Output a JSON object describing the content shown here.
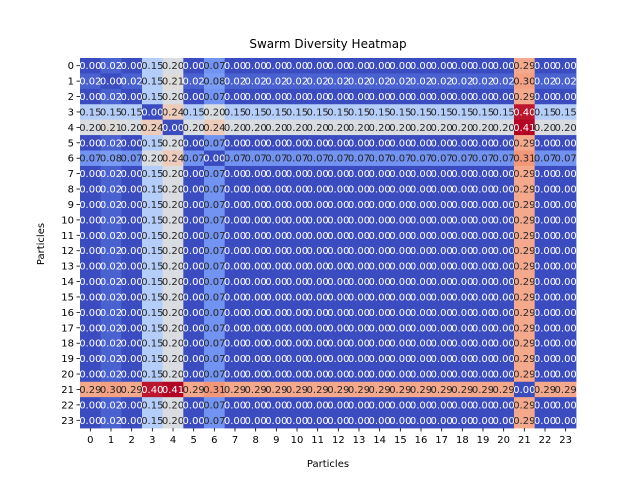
{
  "chart_data": {
    "type": "heatmap",
    "title": "Swarm Diversity Heatmap",
    "xlabel": "Particles",
    "ylabel": "Particles",
    "colormap": "coolwarm",
    "vmin": 0.0,
    "vmax": 0.41,
    "annotation_format": "0.00",
    "row_labels": [
      "0",
      "1",
      "2",
      "3",
      "4",
      "5",
      "6",
      "7",
      "8",
      "9",
      "10",
      "11",
      "12",
      "13",
      "14",
      "15",
      "16",
      "17",
      "18",
      "19",
      "20",
      "21",
      "22",
      "23"
    ],
    "col_labels": [
      "0",
      "1",
      "2",
      "3",
      "4",
      "5",
      "6",
      "7",
      "8",
      "9",
      "10",
      "11",
      "12",
      "13",
      "14",
      "15",
      "16",
      "17",
      "18",
      "19",
      "20",
      "21",
      "22",
      "23"
    ],
    "values": [
      [
        0.0,
        0.02,
        0.0,
        0.15,
        0.2,
        0.0,
        0.07,
        0.0,
        0.0,
        0.0,
        0.0,
        0.0,
        0.0,
        0.0,
        0.0,
        0.0,
        0.0,
        0.0,
        0.0,
        0.0,
        0.0,
        0.29,
        0.0,
        0.0
      ],
      [
        0.02,
        0.0,
        0.02,
        0.15,
        0.21,
        0.02,
        0.08,
        0.02,
        0.02,
        0.02,
        0.02,
        0.02,
        0.02,
        0.02,
        0.02,
        0.02,
        0.02,
        0.02,
        0.02,
        0.02,
        0.02,
        0.3,
        0.02,
        0.02
      ],
      [
        0.0,
        0.02,
        0.0,
        0.15,
        0.2,
        0.0,
        0.07,
        0.0,
        0.0,
        0.0,
        0.0,
        0.0,
        0.0,
        0.0,
        0.0,
        0.0,
        0.0,
        0.0,
        0.0,
        0.0,
        0.0,
        0.29,
        0.0,
        0.0
      ],
      [
        0.15,
        0.15,
        0.15,
        0.0,
        0.24,
        0.15,
        0.2,
        0.15,
        0.15,
        0.15,
        0.15,
        0.15,
        0.15,
        0.15,
        0.15,
        0.15,
        0.15,
        0.15,
        0.15,
        0.15,
        0.15,
        0.4,
        0.15,
        0.15
      ],
      [
        0.2,
        0.21,
        0.2,
        0.24,
        0.0,
        0.2,
        0.24,
        0.2,
        0.2,
        0.2,
        0.2,
        0.2,
        0.2,
        0.2,
        0.2,
        0.2,
        0.2,
        0.2,
        0.2,
        0.2,
        0.2,
        0.41,
        0.2,
        0.2
      ],
      [
        0.0,
        0.02,
        0.0,
        0.15,
        0.2,
        0.0,
        0.07,
        0.0,
        0.0,
        0.0,
        0.0,
        0.0,
        0.0,
        0.0,
        0.0,
        0.0,
        0.0,
        0.0,
        0.0,
        0.0,
        0.0,
        0.29,
        0.0,
        0.0
      ],
      [
        0.07,
        0.08,
        0.07,
        0.2,
        0.24,
        0.07,
        0.0,
        0.07,
        0.07,
        0.07,
        0.07,
        0.07,
        0.07,
        0.07,
        0.07,
        0.07,
        0.07,
        0.07,
        0.07,
        0.07,
        0.07,
        0.31,
        0.07,
        0.07
      ],
      [
        0.0,
        0.02,
        0.0,
        0.15,
        0.2,
        0.0,
        0.07,
        0.0,
        0.0,
        0.0,
        0.0,
        0.0,
        0.0,
        0.0,
        0.0,
        0.0,
        0.0,
        0.0,
        0.0,
        0.0,
        0.0,
        0.29,
        0.0,
        0.0
      ],
      [
        0.0,
        0.02,
        0.0,
        0.15,
        0.2,
        0.0,
        0.07,
        0.0,
        0.0,
        0.0,
        0.0,
        0.0,
        0.0,
        0.0,
        0.0,
        0.0,
        0.0,
        0.0,
        0.0,
        0.0,
        0.0,
        0.29,
        0.0,
        0.0
      ],
      [
        0.0,
        0.02,
        0.0,
        0.15,
        0.2,
        0.0,
        0.07,
        0.0,
        0.0,
        0.0,
        0.0,
        0.0,
        0.0,
        0.0,
        0.0,
        0.0,
        0.0,
        0.0,
        0.0,
        0.0,
        0.0,
        0.29,
        0.0,
        0.0
      ],
      [
        0.0,
        0.02,
        0.0,
        0.15,
        0.2,
        0.0,
        0.07,
        0.0,
        0.0,
        0.0,
        0.0,
        0.0,
        0.0,
        0.0,
        0.0,
        0.0,
        0.0,
        0.0,
        0.0,
        0.0,
        0.0,
        0.29,
        0.0,
        0.0
      ],
      [
        0.0,
        0.02,
        0.0,
        0.15,
        0.2,
        0.0,
        0.07,
        0.0,
        0.0,
        0.0,
        0.0,
        0.0,
        0.0,
        0.0,
        0.0,
        0.0,
        0.0,
        0.0,
        0.0,
        0.0,
        0.0,
        0.29,
        0.0,
        0.0
      ],
      [
        0.0,
        0.02,
        0.0,
        0.15,
        0.2,
        0.0,
        0.07,
        0.0,
        0.0,
        0.0,
        0.0,
        0.0,
        0.0,
        0.0,
        0.0,
        0.0,
        0.0,
        0.0,
        0.0,
        0.0,
        0.0,
        0.29,
        0.0,
        0.0
      ],
      [
        0.0,
        0.02,
        0.0,
        0.15,
        0.2,
        0.0,
        0.07,
        0.0,
        0.0,
        0.0,
        0.0,
        0.0,
        0.0,
        0.0,
        0.0,
        0.0,
        0.0,
        0.0,
        0.0,
        0.0,
        0.0,
        0.29,
        0.0,
        0.0
      ],
      [
        0.0,
        0.02,
        0.0,
        0.15,
        0.2,
        0.0,
        0.07,
        0.0,
        0.0,
        0.0,
        0.0,
        0.0,
        0.0,
        0.0,
        0.0,
        0.0,
        0.0,
        0.0,
        0.0,
        0.0,
        0.0,
        0.29,
        0.0,
        0.0
      ],
      [
        0.0,
        0.02,
        0.0,
        0.15,
        0.2,
        0.0,
        0.07,
        0.0,
        0.0,
        0.0,
        0.0,
        0.0,
        0.0,
        0.0,
        0.0,
        0.0,
        0.0,
        0.0,
        0.0,
        0.0,
        0.0,
        0.29,
        0.0,
        0.0
      ],
      [
        0.0,
        0.02,
        0.0,
        0.15,
        0.2,
        0.0,
        0.07,
        0.0,
        0.0,
        0.0,
        0.0,
        0.0,
        0.0,
        0.0,
        0.0,
        0.0,
        0.0,
        0.0,
        0.0,
        0.0,
        0.0,
        0.29,
        0.0,
        0.0
      ],
      [
        0.0,
        0.02,
        0.0,
        0.15,
        0.2,
        0.0,
        0.07,
        0.0,
        0.0,
        0.0,
        0.0,
        0.0,
        0.0,
        0.0,
        0.0,
        0.0,
        0.0,
        0.0,
        0.0,
        0.0,
        0.0,
        0.29,
        0.0,
        0.0
      ],
      [
        0.0,
        0.02,
        0.0,
        0.15,
        0.2,
        0.0,
        0.07,
        0.0,
        0.0,
        0.0,
        0.0,
        0.0,
        0.0,
        0.0,
        0.0,
        0.0,
        0.0,
        0.0,
        0.0,
        0.0,
        0.0,
        0.29,
        0.0,
        0.0
      ],
      [
        0.0,
        0.02,
        0.0,
        0.15,
        0.2,
        0.0,
        0.07,
        0.0,
        0.0,
        0.0,
        0.0,
        0.0,
        0.0,
        0.0,
        0.0,
        0.0,
        0.0,
        0.0,
        0.0,
        0.0,
        0.0,
        0.29,
        0.0,
        0.0
      ],
      [
        0.0,
        0.02,
        0.0,
        0.15,
        0.2,
        0.0,
        0.07,
        0.0,
        0.0,
        0.0,
        0.0,
        0.0,
        0.0,
        0.0,
        0.0,
        0.0,
        0.0,
        0.0,
        0.0,
        0.0,
        0.0,
        0.29,
        0.0,
        0.0
      ],
      [
        0.29,
        0.3,
        0.29,
        0.4,
        0.41,
        0.29,
        0.31,
        0.29,
        0.29,
        0.29,
        0.29,
        0.29,
        0.29,
        0.29,
        0.29,
        0.29,
        0.29,
        0.29,
        0.29,
        0.29,
        0.29,
        0.0,
        0.29,
        0.29
      ],
      [
        0.0,
        0.02,
        0.0,
        0.15,
        0.2,
        0.0,
        0.07,
        0.0,
        0.0,
        0.0,
        0.0,
        0.0,
        0.0,
        0.0,
        0.0,
        0.0,
        0.0,
        0.0,
        0.0,
        0.0,
        0.0,
        0.29,
        0.0,
        0.0
      ],
      [
        0.0,
        0.02,
        0.0,
        0.15,
        0.2,
        0.0,
        0.07,
        0.0,
        0.0,
        0.0,
        0.0,
        0.0,
        0.0,
        0.0,
        0.0,
        0.0,
        0.0,
        0.0,
        0.0,
        0.0,
        0.0,
        0.29,
        0.0,
        0.0
      ]
    ]
  }
}
